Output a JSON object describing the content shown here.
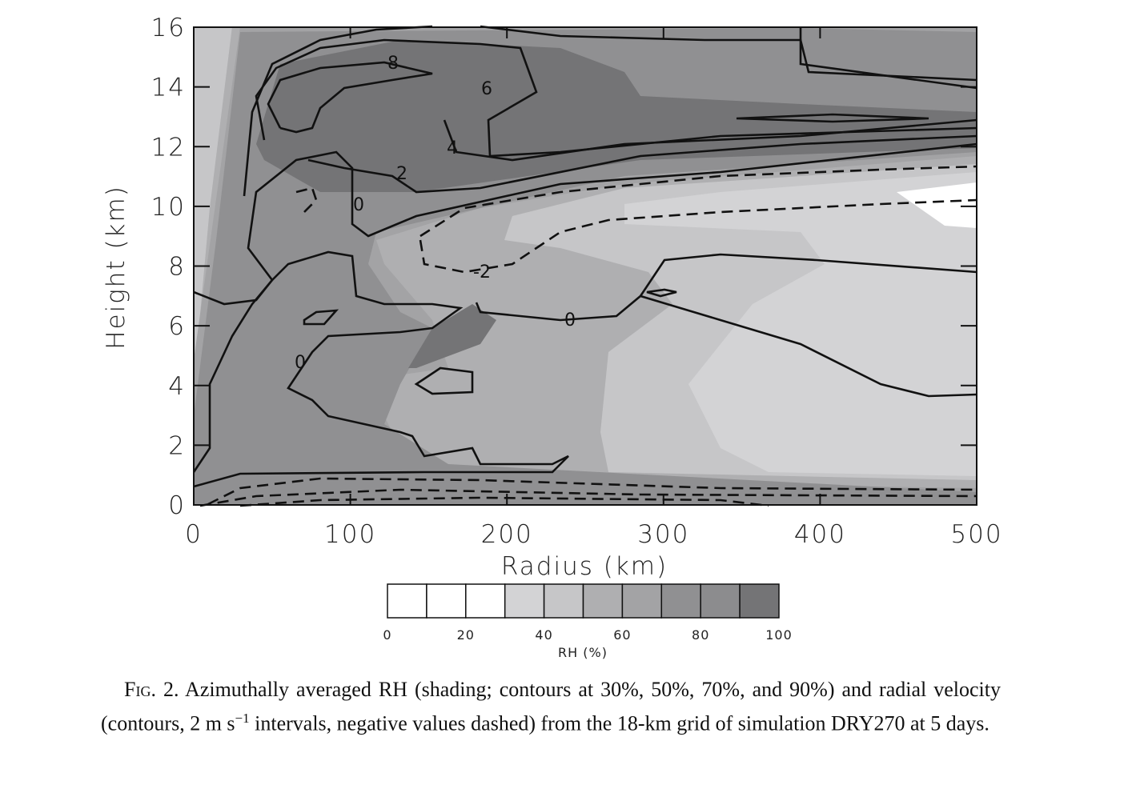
{
  "chart_data": {
    "type": "contour",
    "xlabel": "Radius (km)",
    "ylabel": "Height (km)",
    "xlim": [
      0,
      500
    ],
    "ylim": [
      0,
      16
    ],
    "xticks": [
      0,
      100,
      200,
      300,
      400,
      500
    ],
    "yticks": [
      0,
      2,
      4,
      6,
      8,
      10,
      12,
      14,
      16
    ],
    "contour_labels": [
      8,
      6,
      4,
      2,
      0,
      -2,
      0,
      0
    ],
    "colorbar": {
      "label": "RH (%)",
      "bounds": [
        0,
        10,
        20,
        30,
        40,
        50,
        60,
        70,
        80,
        90,
        100
      ],
      "colors": [
        "#ffffff",
        "#ffffff",
        "#ffffff",
        "#d3d3d5",
        "#c6c6c8",
        "#afafb1",
        "#a3a3a5",
        "#909092",
        "#8c8c8e",
        "#747476"
      ],
      "ticks": [
        0,
        20,
        40,
        60,
        80,
        100
      ]
    }
  },
  "caption": {
    "label": "Fig. 2.",
    "text_1": "Azimuthally averaged RH (shading; contours at 30%, 50%, 70%, and 90%) and radial velocity (contours, 2 m s",
    "superscript": "−1",
    "text_2": " intervals, negative values dashed) from the 18-km grid of simulation DRY270 at 5 days."
  }
}
